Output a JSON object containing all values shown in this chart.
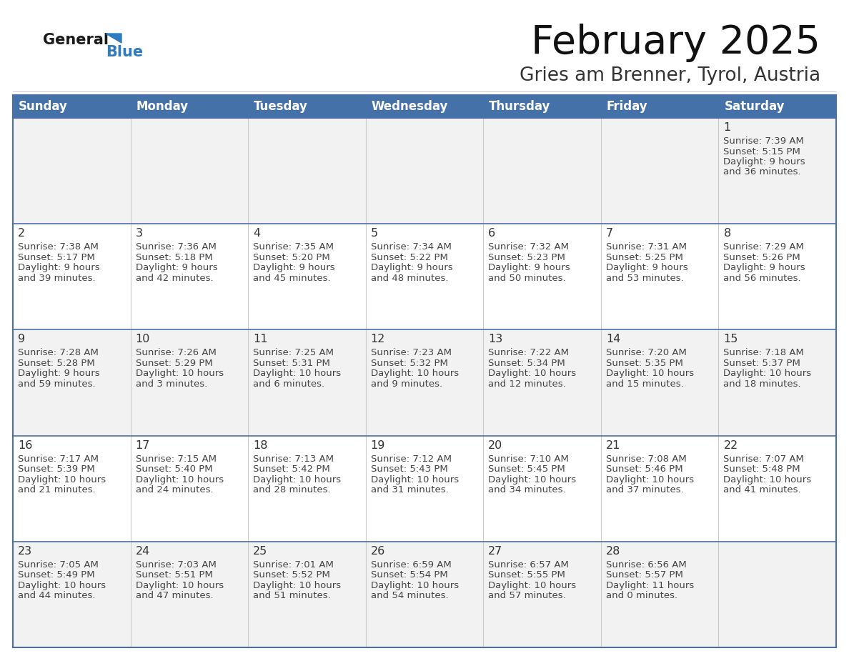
{
  "title": "February 2025",
  "subtitle": "Gries am Brenner, Tyrol, Austria",
  "header_bg": "#4472a8",
  "header_text_color": "#FFFFFF",
  "day_names": [
    "Sunday",
    "Monday",
    "Tuesday",
    "Wednesday",
    "Thursday",
    "Friday",
    "Saturday"
  ],
  "bg_color": "#FFFFFF",
  "cell_bg_alt": "#F2F2F2",
  "border_color": "#4472a8",
  "row_line_color": "#4a6fa8",
  "text_color": "#444444",
  "day_num_color": "#333333",
  "logo_general_color": "#1a1a1a",
  "logo_blue_color": "#2E7BBF",
  "days": [
    {
      "day": 1,
      "col": 6,
      "row": 0,
      "sunrise": "7:39 AM",
      "sunset": "5:15 PM",
      "daylight_hours": 9,
      "daylight_minutes": 36
    },
    {
      "day": 2,
      "col": 0,
      "row": 1,
      "sunrise": "7:38 AM",
      "sunset": "5:17 PM",
      "daylight_hours": 9,
      "daylight_minutes": 39
    },
    {
      "day": 3,
      "col": 1,
      "row": 1,
      "sunrise": "7:36 AM",
      "sunset": "5:18 PM",
      "daylight_hours": 9,
      "daylight_minutes": 42
    },
    {
      "day": 4,
      "col": 2,
      "row": 1,
      "sunrise": "7:35 AM",
      "sunset": "5:20 PM",
      "daylight_hours": 9,
      "daylight_minutes": 45
    },
    {
      "day": 5,
      "col": 3,
      "row": 1,
      "sunrise": "7:34 AM",
      "sunset": "5:22 PM",
      "daylight_hours": 9,
      "daylight_minutes": 48
    },
    {
      "day": 6,
      "col": 4,
      "row": 1,
      "sunrise": "7:32 AM",
      "sunset": "5:23 PM",
      "daylight_hours": 9,
      "daylight_minutes": 50
    },
    {
      "day": 7,
      "col": 5,
      "row": 1,
      "sunrise": "7:31 AM",
      "sunset": "5:25 PM",
      "daylight_hours": 9,
      "daylight_minutes": 53
    },
    {
      "day": 8,
      "col": 6,
      "row": 1,
      "sunrise": "7:29 AM",
      "sunset": "5:26 PM",
      "daylight_hours": 9,
      "daylight_minutes": 56
    },
    {
      "day": 9,
      "col": 0,
      "row": 2,
      "sunrise": "7:28 AM",
      "sunset": "5:28 PM",
      "daylight_hours": 9,
      "daylight_minutes": 59
    },
    {
      "day": 10,
      "col": 1,
      "row": 2,
      "sunrise": "7:26 AM",
      "sunset": "5:29 PM",
      "daylight_hours": 10,
      "daylight_minutes": 3
    },
    {
      "day": 11,
      "col": 2,
      "row": 2,
      "sunrise": "7:25 AM",
      "sunset": "5:31 PM",
      "daylight_hours": 10,
      "daylight_minutes": 6
    },
    {
      "day": 12,
      "col": 3,
      "row": 2,
      "sunrise": "7:23 AM",
      "sunset": "5:32 PM",
      "daylight_hours": 10,
      "daylight_minutes": 9
    },
    {
      "day": 13,
      "col": 4,
      "row": 2,
      "sunrise": "7:22 AM",
      "sunset": "5:34 PM",
      "daylight_hours": 10,
      "daylight_minutes": 12
    },
    {
      "day": 14,
      "col": 5,
      "row": 2,
      "sunrise": "7:20 AM",
      "sunset": "5:35 PM",
      "daylight_hours": 10,
      "daylight_minutes": 15
    },
    {
      "day": 15,
      "col": 6,
      "row": 2,
      "sunrise": "7:18 AM",
      "sunset": "5:37 PM",
      "daylight_hours": 10,
      "daylight_minutes": 18
    },
    {
      "day": 16,
      "col": 0,
      "row": 3,
      "sunrise": "7:17 AM",
      "sunset": "5:39 PM",
      "daylight_hours": 10,
      "daylight_minutes": 21
    },
    {
      "day": 17,
      "col": 1,
      "row": 3,
      "sunrise": "7:15 AM",
      "sunset": "5:40 PM",
      "daylight_hours": 10,
      "daylight_minutes": 24
    },
    {
      "day": 18,
      "col": 2,
      "row": 3,
      "sunrise": "7:13 AM",
      "sunset": "5:42 PM",
      "daylight_hours": 10,
      "daylight_minutes": 28
    },
    {
      "day": 19,
      "col": 3,
      "row": 3,
      "sunrise": "7:12 AM",
      "sunset": "5:43 PM",
      "daylight_hours": 10,
      "daylight_minutes": 31
    },
    {
      "day": 20,
      "col": 4,
      "row": 3,
      "sunrise": "7:10 AM",
      "sunset": "5:45 PM",
      "daylight_hours": 10,
      "daylight_minutes": 34
    },
    {
      "day": 21,
      "col": 5,
      "row": 3,
      "sunrise": "7:08 AM",
      "sunset": "5:46 PM",
      "daylight_hours": 10,
      "daylight_minutes": 37
    },
    {
      "day": 22,
      "col": 6,
      "row": 3,
      "sunrise": "7:07 AM",
      "sunset": "5:48 PM",
      "daylight_hours": 10,
      "daylight_minutes": 41
    },
    {
      "day": 23,
      "col": 0,
      "row": 4,
      "sunrise": "7:05 AM",
      "sunset": "5:49 PM",
      "daylight_hours": 10,
      "daylight_minutes": 44
    },
    {
      "day": 24,
      "col": 1,
      "row": 4,
      "sunrise": "7:03 AM",
      "sunset": "5:51 PM",
      "daylight_hours": 10,
      "daylight_minutes": 47
    },
    {
      "day": 25,
      "col": 2,
      "row": 4,
      "sunrise": "7:01 AM",
      "sunset": "5:52 PM",
      "daylight_hours": 10,
      "daylight_minutes": 51
    },
    {
      "day": 26,
      "col": 3,
      "row": 4,
      "sunrise": "6:59 AM",
      "sunset": "5:54 PM",
      "daylight_hours": 10,
      "daylight_minutes": 54
    },
    {
      "day": 27,
      "col": 4,
      "row": 4,
      "sunrise": "6:57 AM",
      "sunset": "5:55 PM",
      "daylight_hours": 10,
      "daylight_minutes": 57
    },
    {
      "day": 28,
      "col": 5,
      "row": 4,
      "sunrise": "6:56 AM",
      "sunset": "5:57 PM",
      "daylight_hours": 11,
      "daylight_minutes": 0
    }
  ]
}
